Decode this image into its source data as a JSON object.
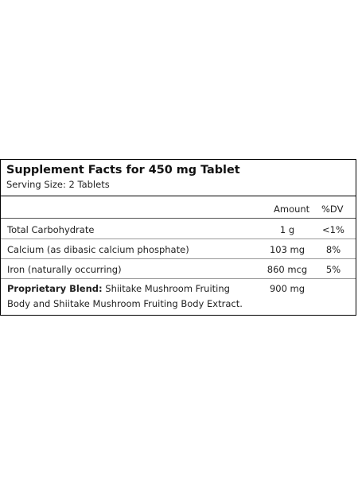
{
  "panel": {
    "title": "Supplement Facts for 450 mg Tablet",
    "serving_size": "Serving Size: 2 Tablets",
    "columns": {
      "amount": "Amount",
      "dv": "%DV"
    },
    "rows": [
      {
        "name": "Total Carbohydrate",
        "amount": "1 g",
        "dv": "<1%"
      },
      {
        "name": "Calcium (as dibasic calcium phosphate)",
        "amount": "103 mg",
        "dv": "8%"
      },
      {
        "name": "Iron (naturally occurring)",
        "amount": "860 mcg",
        "dv": "5%"
      }
    ],
    "blend": {
      "label": "Proprietary Blend:",
      "text": " Shiitake Mushroom Fruiting Body and Shiitake Mushroom Fruiting Body Extract.",
      "amount": "900 mg"
    }
  }
}
